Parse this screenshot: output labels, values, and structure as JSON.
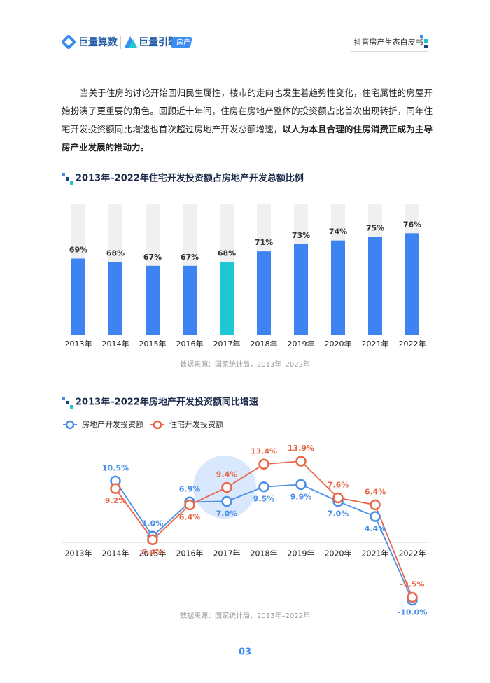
{
  "header": {
    "logo1": "巨量算数",
    "logo2": "巨量引擎",
    "tag": "房产",
    "doc_title": "抖音房产生态白皮书"
  },
  "paragraph": {
    "text": "当关于住房的讨论开始回归民生属性，楼市的走向也发生着趋势性变化，住宅属性的房屋开始扮演了更重要的角色。回顾近十年间，住房在房地产整体的投资额占比首次出现转折，同年住宅开发投资额同比增速也首次超过房地产开发总额增速，",
    "bold": "以人为本且合理的住房消费正成为主导房产业发展的推动力。"
  },
  "chart_data": [
    {
      "type": "bar",
      "title": "2013年–2022年住宅开发投资额占房地产开发总额比例",
      "categories": [
        "2013年",
        "2014年",
        "2015年",
        "2016年",
        "2017年",
        "2018年",
        "2019年",
        "2020年",
        "2021年",
        "2022年"
      ],
      "values": [
        69,
        68,
        67,
        67,
        68,
        71,
        73,
        74,
        75,
        76
      ],
      "value_labels": [
        "69%",
        "68%",
        "67%",
        "67%",
        "68%",
        "71%",
        "73%",
        "74%",
        "75%",
        "76%"
      ],
      "colors": [
        "#3d84f2",
        "#3d84f2",
        "#3d84f2",
        "#3d84f2",
        "#1ec8d3",
        "#3d84f2",
        "#3d84f2",
        "#3d84f2",
        "#3d84f2",
        "#3d84f2"
      ],
      "ylim": [
        48,
        84
      ],
      "source": "数据来源：国家统计局，2013年–2022年"
    },
    {
      "type": "line",
      "title": "2013年–2022年房地产开发投资额同比增速",
      "categories": [
        "2013年",
        "2014年",
        "2015年",
        "2016年",
        "2017年",
        "2018年",
        "2019年",
        "2020年",
        "2021年",
        "2022年"
      ],
      "series": [
        {
          "name": "房地产开发投资额",
          "color": "#4a8fe8",
          "values": [
            null,
            10.5,
            1.0,
            6.9,
            7.0,
            9.5,
            9.9,
            7.0,
            4.4,
            -10.0
          ],
          "value_labels": [
            null,
            "10.5%",
            "1.0%",
            "6.9%",
            "7.0%",
            "9.5%",
            "9.9%",
            "7.0%",
            "4.4%",
            "-10.0%"
          ]
        },
        {
          "name": "住宅开发投资额",
          "color": "#e8674a",
          "values": [
            null,
            9.2,
            0.4,
            6.4,
            9.4,
            13.4,
            13.9,
            7.6,
            6.4,
            -9.5
          ],
          "value_labels": [
            null,
            "9.2%",
            "0.4%",
            "6.4%",
            "9.4%",
            "13.4%",
            "13.9%",
            "7.6%",
            "6.4%",
            "-9.5%"
          ]
        }
      ],
      "ylim": [
        -11,
        15
      ],
      "source": "数据来源：国家统计局，2013年–2022年"
    }
  ],
  "page_number": "03"
}
